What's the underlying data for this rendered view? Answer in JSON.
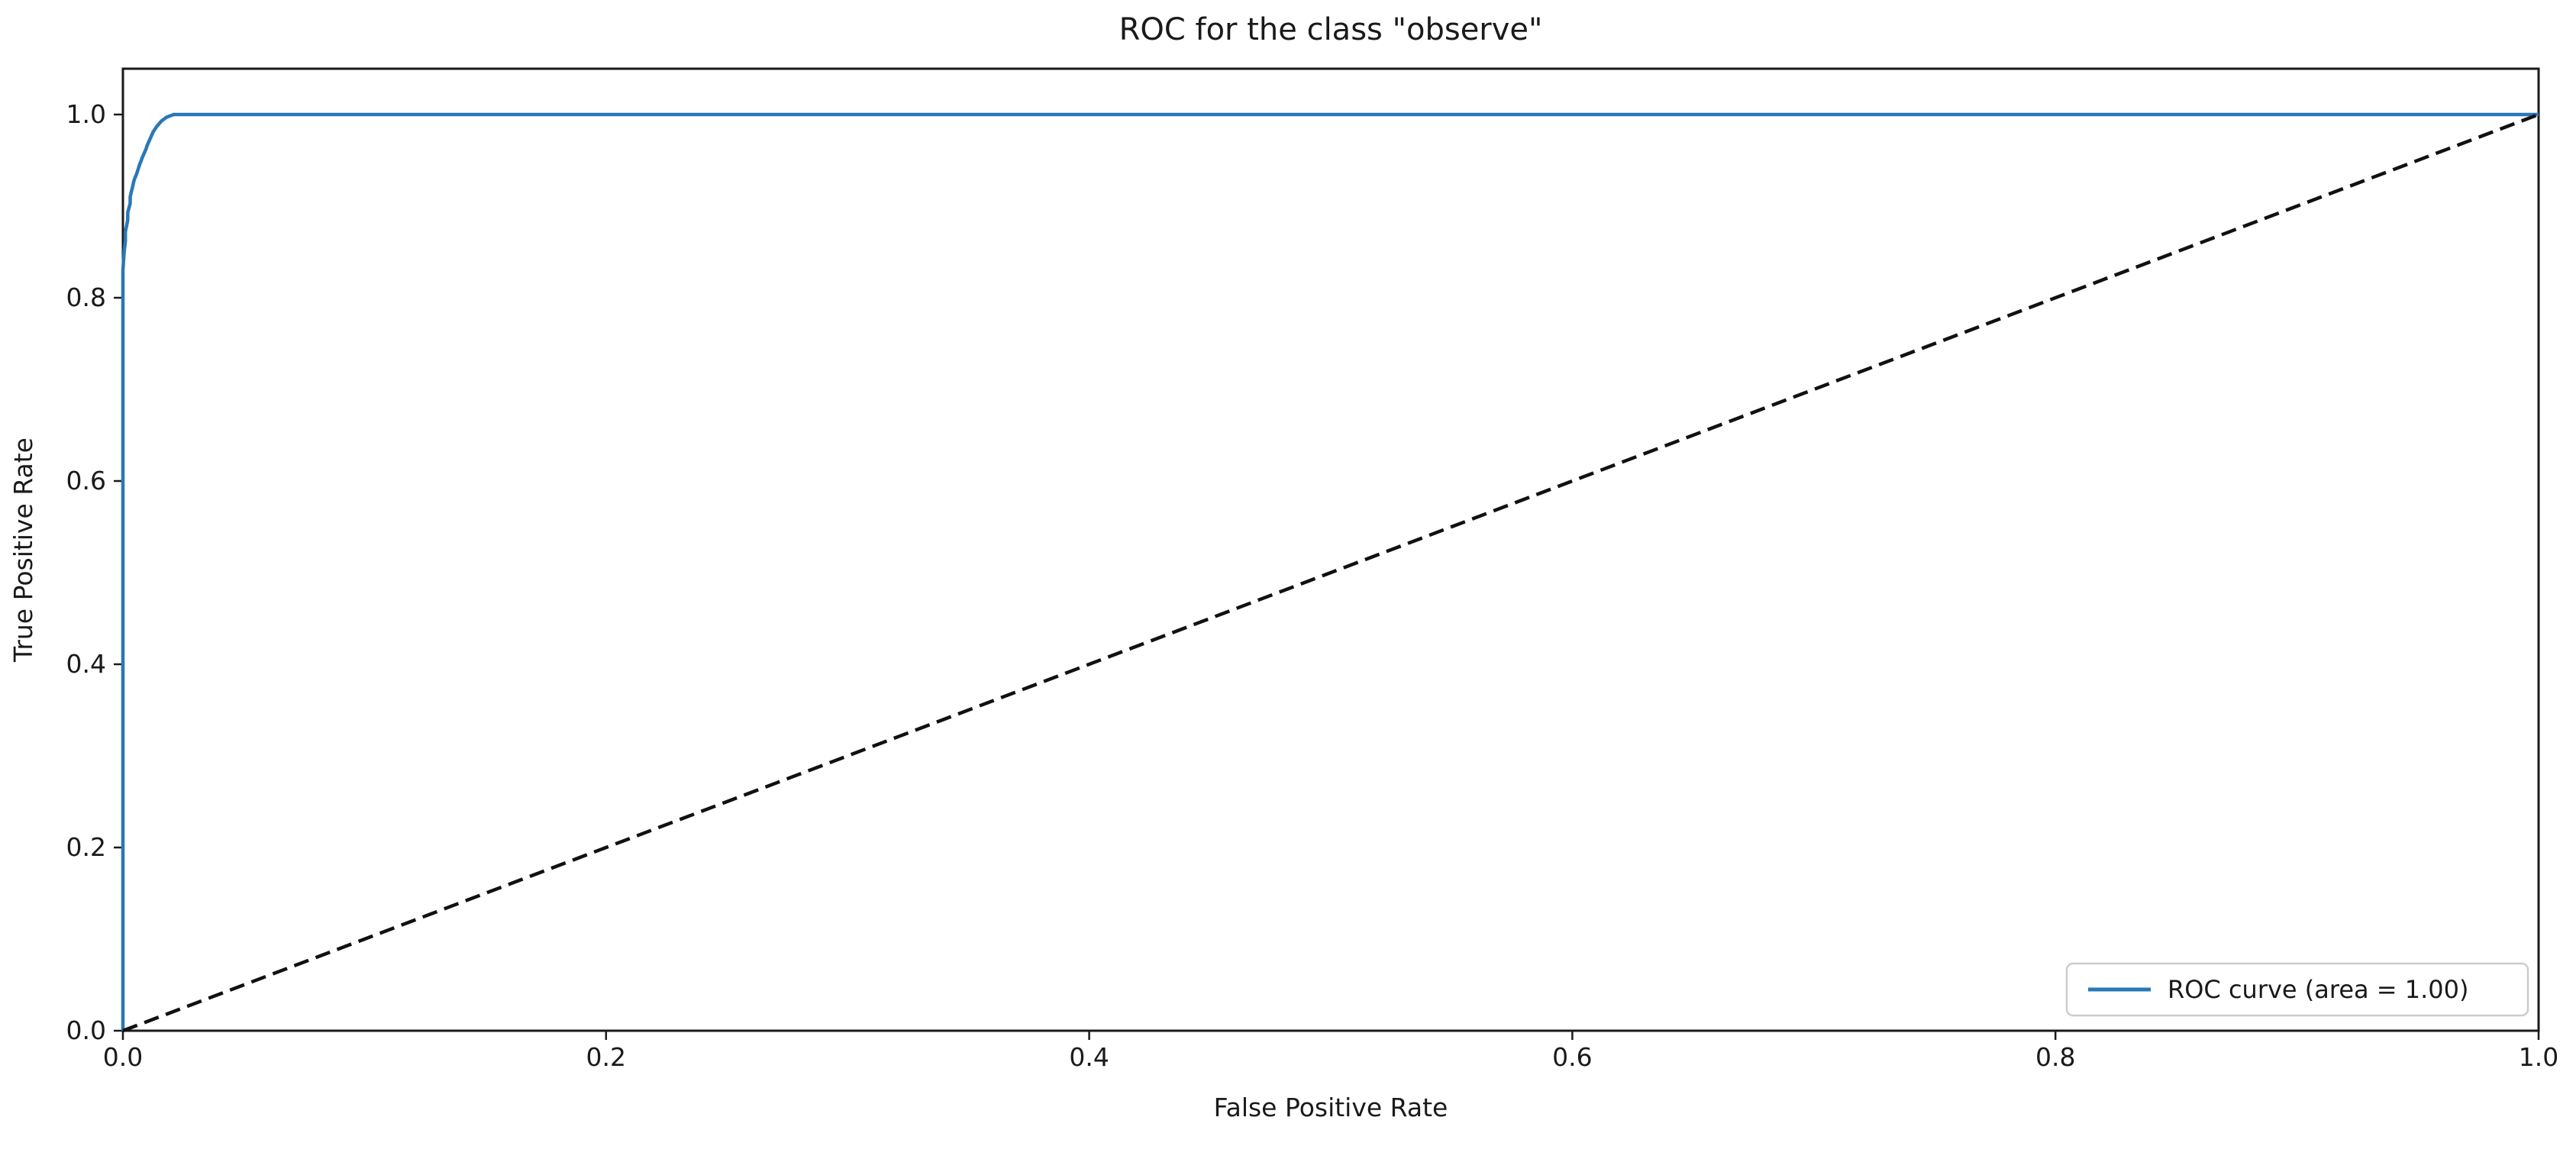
{
  "chart_data": {
    "type": "line",
    "title": "ROC for the class \"observe\"",
    "xlabel": "False Positive Rate",
    "ylabel": "True Positive Rate",
    "xlim": [
      0,
      1
    ],
    "ylim": [
      0,
      1.05
    ],
    "grid": false,
    "xticks": {
      "values": [
        0,
        0.2,
        0.4,
        0.6,
        0.8,
        1.0
      ],
      "labels": [
        "0.0",
        "0.2",
        "0.4",
        "0.6",
        "0.8",
        "1.0"
      ]
    },
    "yticks": {
      "values": [
        0,
        0.2,
        0.4,
        0.6,
        0.8,
        1.0
      ],
      "labels": [
        "0.0",
        "0.2",
        "0.4",
        "0.6",
        "0.8",
        "1.0"
      ]
    },
    "series": [
      {
        "name": "roc-curve",
        "label": "ROC curve (area = 1.00)",
        "color": "#2878b9",
        "style": "solid",
        "points": [
          [
            0,
            0
          ],
          [
            0,
            0.83
          ],
          [
            0.0005,
            0.85
          ],
          [
            0.001,
            0.862
          ],
          [
            0.001,
            0.872
          ],
          [
            0.0015,
            0.878
          ],
          [
            0.002,
            0.885
          ],
          [
            0.002,
            0.893
          ],
          [
            0.0025,
            0.898
          ],
          [
            0.003,
            0.903
          ],
          [
            0.003,
            0.91
          ],
          [
            0.0035,
            0.916
          ],
          [
            0.004,
            0.921
          ],
          [
            0.0045,
            0.927
          ],
          [
            0.005,
            0.931
          ],
          [
            0.0055,
            0.934
          ],
          [
            0.006,
            0.938
          ],
          [
            0.0065,
            0.942
          ],
          [
            0.007,
            0.946
          ],
          [
            0.0075,
            0.949
          ],
          [
            0.008,
            0.953
          ],
          [
            0.0085,
            0.956
          ],
          [
            0.009,
            0.959
          ],
          [
            0.0095,
            0.962
          ],
          [
            0.01,
            0.966
          ],
          [
            0.0105,
            0.969
          ],
          [
            0.011,
            0.972
          ],
          [
            0.0115,
            0.975
          ],
          [
            0.012,
            0.978
          ],
          [
            0.0125,
            0.981
          ],
          [
            0.013,
            0.983
          ],
          [
            0.0135,
            0.985
          ],
          [
            0.014,
            0.987
          ],
          [
            0.015,
            0.99
          ],
          [
            0.016,
            0.993
          ],
          [
            0.017,
            0.995
          ],
          [
            0.018,
            0.997
          ],
          [
            0.019,
            0.998
          ],
          [
            0.02,
            0.999
          ],
          [
            0.021,
            1.0
          ],
          [
            1,
            1.0
          ]
        ]
      },
      {
        "name": "chance-diagonal",
        "label": null,
        "color": "#111111",
        "style": "dashed",
        "points": [
          [
            0,
            0
          ],
          [
            1,
            1
          ]
        ]
      }
    ],
    "legend": {
      "position": "lower right",
      "entries": [
        {
          "label": "ROC curve (area = 1.00)",
          "color": "#2878b9"
        }
      ]
    },
    "auc": "1.00"
  }
}
